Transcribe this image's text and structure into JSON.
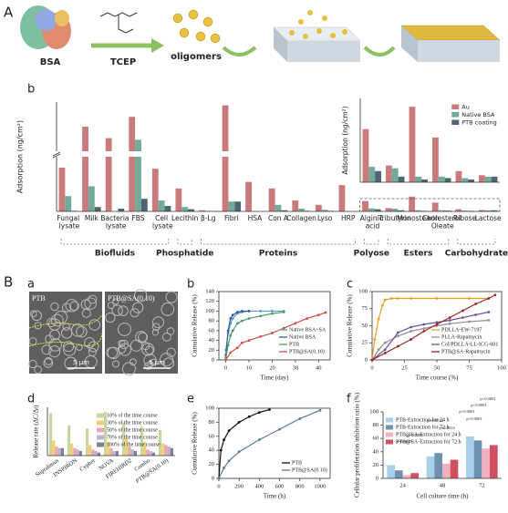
{
  "panel_labels": {
    "A": "A",
    "Aa": "a",
    "Ab": "b",
    "B": "B",
    "Ba": "a",
    "Bb": "b",
    "Bc": "c",
    "Bd": "d",
    "Be": "e",
    "Bf": "f"
  },
  "schematic": {
    "protein": "BSA",
    "reagent": "TCEP",
    "product": "oligomers"
  },
  "micrographs": [
    {
      "label": "PTB",
      "scale_bar": "5 μm"
    },
    {
      "label": "PTB@SA(0.10)",
      "scale_bar": "5 μm"
    }
  ],
  "chart_data": [
    {
      "type": "bar",
      "ylabel": "Adsorption (ng/cm²)",
      "categories": [
        "Fungal lysate",
        "Milk",
        "Bacteria lysate",
        "FBS",
        "Cell lysate",
        "Lecithin",
        "β-Lg",
        "Fibri",
        "HSA",
        "Con A",
        "Collagen",
        "Lyso",
        "HRP",
        "Alginic acid",
        "Tributyrin",
        "Monostearin",
        "Cholesterol Oleate",
        "Ribose",
        "Lactose"
      ],
      "series": [
        {
          "color": "#c97a7a",
          "values": [
            800,
            1750,
            1400,
            2050,
            780,
            420,
            20,
            2400,
            540,
            420,
            200,
            120,
            480,
            190,
            60,
            270,
            160,
            40,
            25
          ]
        },
        {
          "color": "#72ab9b",
          "values": [
            280,
            460,
            0,
            1350,
            200,
            80,
            10,
            180,
            0,
            120,
            50,
            30,
            0,
            55,
            50,
            20,
            20,
            15,
            20
          ]
        },
        {
          "color": "#4d6672",
          "values": [
            10,
            80,
            50,
            230,
            100,
            40,
            5,
            180,
            0,
            20,
            10,
            10,
            0,
            40,
            20,
            10,
            15,
            10,
            20
          ]
        }
      ],
      "ylim": [
        0,
        2500
      ],
      "y_break": 1000,
      "groups": [
        "Biofluids",
        "Phosphatide",
        "Proteins",
        "Polyose",
        "Esters",
        "Carbohydrate"
      ]
    },
    {
      "type": "bar",
      "ylabel": "Adsorption (ng/cm²)",
      "series": [
        {
          "name": "Au",
          "color": "#c97a7a",
          "values": [
            190,
            60,
            270,
            160,
            40,
            25
          ]
        },
        {
          "name": "Native BSA",
          "color": "#72ab9b",
          "values": [
            55,
            50,
            20,
            20,
            15,
            20
          ]
        },
        {
          "name": "PTB coating",
          "color": "#4d6672",
          "values": [
            40,
            20,
            10,
            15,
            10,
            20
          ]
        }
      ],
      "ylim": [
        0,
        300
      ],
      "legend": "upper right"
    },
    {
      "type": "line",
      "xlabel": "Time (day)",
      "ylabel": "Cumulative Release (%)",
      "xlim": [
        -3,
        45
      ],
      "xticks": [
        0,
        10,
        20,
        30,
        40
      ],
      "ylim": [
        0,
        140
      ],
      "yticks": [
        0,
        20,
        40,
        60,
        80,
        100,
        120,
        140
      ],
      "legend": "lower right",
      "series": [
        {
          "name": "Native BSA+SA",
          "color": "#5aa0c8",
          "x": [
            0,
            1,
            2,
            3,
            5,
            7,
            10,
            15,
            20,
            25
          ],
          "values": [
            20,
            55,
            75,
            85,
            95,
            98,
            100,
            100,
            100,
            100
          ]
        },
        {
          "name": "Native BSA",
          "color": "#2e5e9e",
          "x": [
            0,
            1,
            2,
            3,
            5,
            7,
            10
          ],
          "values": [
            10,
            60,
            85,
            92,
            98,
            100,
            100
          ]
        },
        {
          "name": "PTB",
          "color": "#4a9a6a",
          "x": [
            0,
            1,
            2,
            3,
            5,
            7,
            10,
            15,
            20,
            25
          ],
          "values": [
            5,
            30,
            50,
            60,
            75,
            80,
            85,
            90,
            95,
            98
          ]
        },
        {
          "name": "PTB@SA(0.10)",
          "color": "#d0504a",
          "x": [
            0,
            2,
            5,
            7,
            10,
            15,
            20,
            25,
            30,
            35,
            40,
            43
          ],
          "values": [
            0,
            15,
            25,
            35,
            40,
            48,
            55,
            65,
            75,
            85,
            92,
            97
          ]
        }
      ]
    },
    {
      "type": "line",
      "xlabel": "Time course (%)",
      "ylabel": "Cumulative Release (%)",
      "xlim": [
        0,
        100
      ],
      "xticks": [
        0,
        25,
        50,
        75,
        100
      ],
      "ylim": [
        0,
        100
      ],
      "yticks": [
        0,
        25,
        50,
        75,
        100
      ],
      "legend": "lower right",
      "series": [
        {
          "name": "PDLLA-EW-7197",
          "color": "#f0a020",
          "x": [
            0,
            2,
            5,
            8,
            10,
            15,
            20,
            30,
            50,
            75,
            90
          ],
          "values": [
            0,
            30,
            60,
            80,
            88,
            90,
            90,
            90,
            90,
            90,
            90
          ]
        },
        {
          "name": "PLLA-Rapamycin",
          "color": "#909090",
          "x": [
            0,
            5,
            10,
            20,
            30,
            40,
            50,
            60,
            75,
            90
          ],
          "values": [
            0,
            15,
            25,
            35,
            42,
            46,
            50,
            53,
            56,
            58
          ]
        },
        {
          "name": "Col/PDLLA-LL-ICG-001",
          "color": "#7050a0",
          "x": [
            0,
            10,
            20,
            30,
            40,
            50,
            60,
            70,
            80,
            90
          ],
          "values": [
            0,
            15,
            40,
            48,
            52,
            55,
            58,
            62,
            66,
            70
          ]
        },
        {
          "name": "PTB@SA-Rapamycin",
          "color": "#a02020",
          "x": [
            0,
            10,
            20,
            30,
            40,
            50,
            60,
            70,
            80,
            90,
            95
          ],
          "values": [
            0,
            10,
            20,
            30,
            42,
            52,
            62,
            72,
            82,
            90,
            95
          ]
        }
      ]
    },
    {
      "type": "bar",
      "ylabel": "Release rate (ΔC/Δt)",
      "categories": [
        "Supralimus",
        "INSPIRON",
        "Cypher",
        "NOVA",
        "FIREHIRD2",
        "Combo",
        "PTB@SA(0.10)"
      ],
      "ylim": [
        0,
        3.2
      ],
      "legend": "upper right",
      "series": [
        {
          "name": "10% of the time course",
          "color": "#c8d6a0",
          "values": [
            2.8,
            2.0,
            1.8,
            2.9,
            2.2,
            1.9,
            1.7
          ]
        },
        {
          "name": "30% of the time course",
          "color": "#f0d070",
          "values": [
            1.0,
            0.8,
            0.7,
            0.9,
            1.1,
            0.9,
            0.8
          ]
        },
        {
          "name": "50% of the time course",
          "color": "#e8a8b8",
          "values": [
            0.6,
            0.5,
            0.4,
            0.5,
            0.6,
            0.4,
            0.7
          ]
        },
        {
          "name": "70% of the time course",
          "color": "#c0b0d8",
          "values": [
            0.5,
            0.4,
            0.3,
            0.3,
            0.4,
            0.3,
            0.6
          ]
        },
        {
          "name": "100% of the time course",
          "color": "#808090",
          "values": [
            0.5,
            0.3,
            0.2,
            0.3,
            0.3,
            0.2,
            0.5
          ]
        }
      ]
    },
    {
      "type": "line",
      "xlabel": "Time (h)",
      "ylabel": "Cumulative Release (%)",
      "xlim": [
        0,
        1100
      ],
      "xticks": [
        0,
        200,
        400,
        600,
        800,
        1000
      ],
      "ylim": [
        0,
        100
      ],
      "yticks": [
        0,
        20,
        40,
        60,
        80,
        100
      ],
      "legend": "lower right",
      "series": [
        {
          "name": "PTB",
          "color": "#111111",
          "x": [
            0,
            20,
            50,
            100,
            200,
            300,
            400,
            500
          ],
          "values": [
            0,
            40,
            55,
            68,
            80,
            88,
            94,
            98
          ]
        },
        {
          "name": "PTB@SA(0.10)",
          "color": "#5a7a9a",
          "x": [
            0,
            50,
            100,
            200,
            400,
            600,
            800,
            1000
          ],
          "values": [
            0,
            15,
            25,
            38,
            55,
            70,
            85,
            97
          ]
        }
      ]
    },
    {
      "type": "bar",
      "xlabel": "Cell culture time (h)",
      "ylabel": "Cellular proliferation inhibition ratio (%)",
      "categories": [
        "24",
        "48",
        "72"
      ],
      "ylim": [
        0,
        100
      ],
      "yticks": [
        0,
        20,
        40,
        60,
        80,
        100
      ],
      "legend": "upper left",
      "series": [
        {
          "name": "PTB-Extraction for 24 h",
          "color": "#a8d0e8",
          "values": [
            20,
            33,
            63
          ]
        },
        {
          "name": "PTB-Extraction for 72 h",
          "color": "#7090b0",
          "values": [
            12,
            38,
            57
          ]
        },
        {
          "name": "PTB@SA-Extraction for 24 h",
          "color": "#f0b0c0",
          "values": [
            5,
            22,
            45
          ]
        },
        {
          "name": "PTB@SA-Extraction for 72 h",
          "color": "#d05060",
          "values": [
            8,
            28,
            50
          ]
        }
      ],
      "annotations": [
        "p=0.0020",
        "p=0.0008",
        "p=0.0013",
        "p=0.0314",
        "p<0.0001",
        "p<0.0001",
        "p<0.0001",
        "p<0.0001"
      ]
    }
  ]
}
